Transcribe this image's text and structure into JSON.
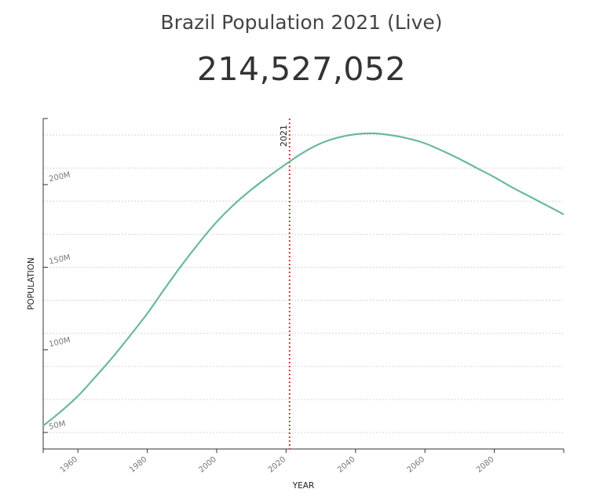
{
  "header": {
    "title": "Brazil Population 2021 (Live)",
    "live_count": "214,527,052"
  },
  "chart_data": {
    "type": "line",
    "title": "Brazil Population 2021 (Live)",
    "xlabel": "YEAR",
    "ylabel": "POPULATION",
    "xlim": [
      1950,
      2100
    ],
    "ylim": [
      40000000,
      240000000
    ],
    "x_ticks": [
      1960,
      1980,
      2000,
      2020,
      2040,
      2060,
      2080
    ],
    "y_ticks": [
      {
        "value": 50000000,
        "label": "50M"
      },
      {
        "value": 100000000,
        "label": "100M"
      },
      {
        "value": 150000000,
        "label": "150M"
      },
      {
        "value": 200000000,
        "label": "200M"
      }
    ],
    "grid": true,
    "marker": {
      "x": 2021,
      "label": "2021",
      "color": "#d9333f"
    },
    "series": [
      {
        "color": "#6bb89f",
        "x": [
          1950,
          1955,
          1960,
          1965,
          1970,
          1975,
          1980,
          1985,
          1990,
          1995,
          2000,
          2005,
          2010,
          2015,
          2020,
          2025,
          2030,
          2035,
          2040,
          2045,
          2050,
          2055,
          2060,
          2065,
          2070,
          2075,
          2080,
          2085,
          2090,
          2095,
          2100
        ],
        "y": [
          54000000,
          62500000,
          72000000,
          83500000,
          95500000,
          108500000,
          122000000,
          137000000,
          151500000,
          165000000,
          177500000,
          188000000,
          197000000,
          205000000,
          212500000,
          219500000,
          225000000,
          228500000,
          230500000,
          231000000,
          230000000,
          228000000,
          225000000,
          220500000,
          215500000,
          210000000,
          204500000,
          198500000,
          193000000,
          187500000,
          182000000
        ]
      }
    ]
  }
}
